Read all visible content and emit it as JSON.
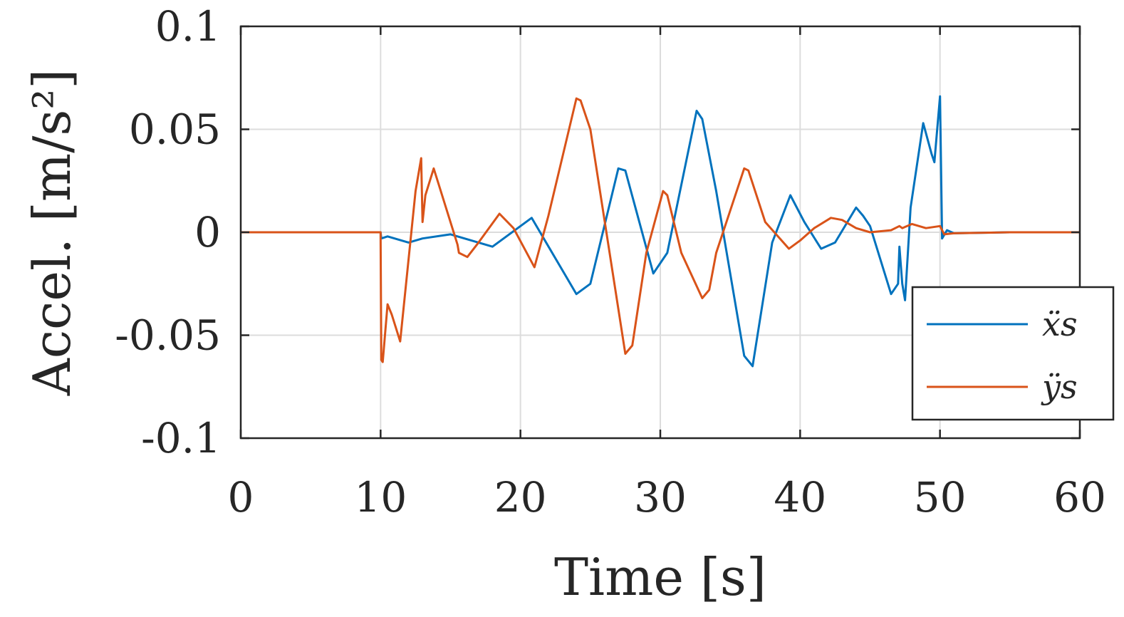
{
  "chart_data": {
    "type": "line",
    "xlabel": "Time [s]",
    "ylabel": "Accel.  [m/s²]",
    "xlim": [
      0,
      60
    ],
    "ylim": [
      -0.1,
      0.1
    ],
    "xticks": [
      0,
      10,
      20,
      30,
      40,
      50,
      60
    ],
    "xtick_labels": [
      "0",
      "10",
      "20",
      "30",
      "40",
      "50",
      "60"
    ],
    "yticks": [
      -0.1,
      -0.05,
      0,
      0.05,
      0.1
    ],
    "ytick_labels": [
      "-0.1",
      "-0.05",
      "0",
      "0.05",
      "0.1"
    ],
    "grid": true,
    "legend_position": "bottom-right",
    "series": [
      {
        "name": "ẍs",
        "color": "#0072BD",
        "x": [
          0,
          10,
          10.05,
          10.5,
          12,
          13,
          15,
          18,
          20.8,
          24,
          25,
          27,
          27.5,
          29.5,
          30.5,
          32.6,
          33,
          34,
          36,
          36.6,
          38,
          39.3,
          40.3,
          41.5,
          42.5,
          44,
          44.5,
          45,
          46.5,
          47,
          47.1,
          47.3,
          47.5,
          47.9,
          48.8,
          49.4,
          49.6,
          50,
          50.15,
          50.5,
          51,
          55,
          60
        ],
        "y": [
          0,
          0,
          -0.003,
          -0.002,
          -0.005,
          -0.003,
          -0.001,
          -0.007,
          0.007,
          -0.03,
          -0.025,
          0.031,
          0.03,
          -0.02,
          -0.01,
          0.059,
          0.055,
          0.02,
          -0.06,
          -0.065,
          -0.005,
          0.018,
          0.005,
          -0.008,
          -0.005,
          0.012,
          0.008,
          0.003,
          -0.03,
          -0.025,
          -0.007,
          -0.025,
          -0.033,
          0.012,
          0.053,
          0.038,
          0.034,
          0.066,
          -0.003,
          0.001,
          -0.0005,
          0,
          0
        ]
      },
      {
        "name": "ÿs",
        "color": "#D95319",
        "x": [
          0,
          10,
          10.05,
          10.15,
          10.5,
          10.8,
          11.4,
          12.5,
          12.9,
          13,
          13.2,
          13.8,
          15.5,
          15.6,
          16.2,
          17,
          18.5,
          19.5,
          21,
          22,
          24,
          24.3,
          25,
          27.5,
          28,
          29,
          30.2,
          30.5,
          31.5,
          33,
          33.5,
          34,
          36,
          36.3,
          37.5,
          39.2,
          40,
          41,
          42.2,
          43,
          44,
          45,
          46.5,
          47.1,
          47.3,
          48,
          49,
          50,
          50.3,
          51,
          55,
          60
        ],
        "y": [
          0,
          0,
          -0.062,
          -0.063,
          -0.035,
          -0.04,
          -0.053,
          0.02,
          0.036,
          0.005,
          0.018,
          0.031,
          -0.006,
          -0.01,
          -0.012,
          -0.005,
          0.009,
          0.002,
          -0.017,
          0.008,
          0.065,
          0.064,
          0.05,
          -0.059,
          -0.055,
          -0.01,
          0.02,
          0.018,
          -0.01,
          -0.032,
          -0.028,
          -0.01,
          0.031,
          0.03,
          0.005,
          -0.008,
          -0.004,
          0.002,
          0.007,
          0.006,
          0.002,
          0,
          0.001,
          0.003,
          0.002,
          0.004,
          0.002,
          0.003,
          -0.001,
          -0.0005,
          0,
          0
        ]
      }
    ]
  }
}
